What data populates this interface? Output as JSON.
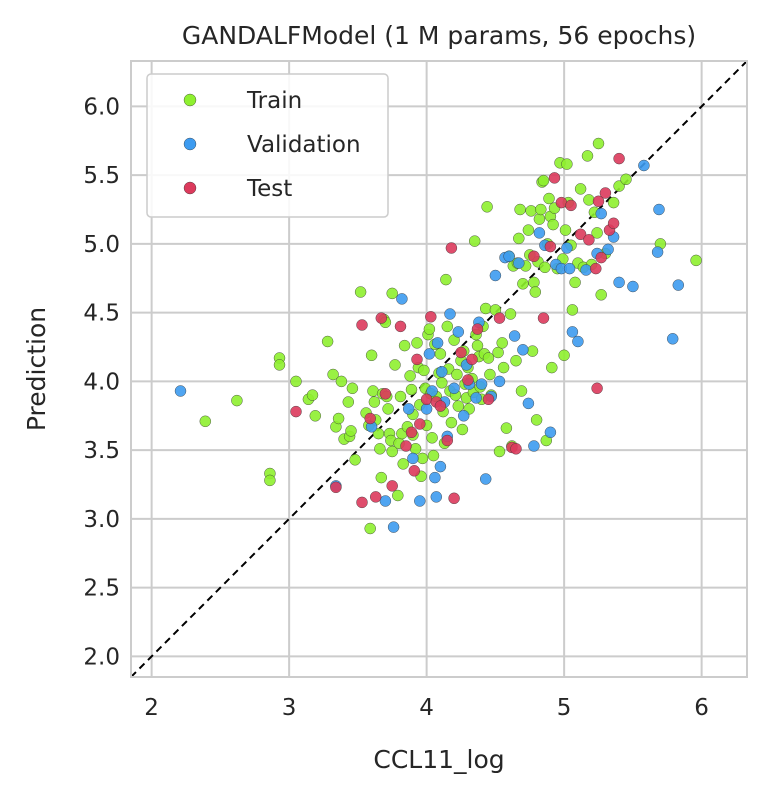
{
  "chart_data": {
    "type": "scatter",
    "title": "GANDALFModel (1 M params, 56 epochs)",
    "xlabel": "CCL11_log",
    "ylabel": "Prediction",
    "xlim": [
      1.85,
      6.33
    ],
    "ylim": [
      1.85,
      6.33
    ],
    "xticks": [
      "2",
      "3",
      "4",
      "5",
      "6"
    ],
    "yticks": [
      "2.0",
      "2.5",
      "3.0",
      "3.5",
      "4.0",
      "4.5",
      "5.0",
      "5.5",
      "6.0"
    ],
    "grid": true,
    "legend_position": "top-left",
    "reference_line": "y = x (dashed black)",
    "series": [
      {
        "name": "Train",
        "color": "#8ef02f",
        "points": [
          [
            2.39,
            3.71
          ],
          [
            2.62,
            3.86
          ],
          [
            2.86,
            3.33
          ],
          [
            2.86,
            3.28
          ],
          [
            2.93,
            4.17
          ],
          [
            2.93,
            4.12
          ],
          [
            3.05,
            4.0
          ],
          [
            3.14,
            3.87
          ],
          [
            3.17,
            3.9
          ],
          [
            3.19,
            3.75
          ],
          [
            3.28,
            4.29
          ],
          [
            3.32,
            4.05
          ],
          [
            3.34,
            3.67
          ],
          [
            3.36,
            3.73
          ],
          [
            3.38,
            4.0
          ],
          [
            3.4,
            3.58
          ],
          [
            3.43,
            3.85
          ],
          [
            3.44,
            3.6
          ],
          [
            3.45,
            3.64
          ],
          [
            3.46,
            3.95
          ],
          [
            3.48,
            3.43
          ],
          [
            3.52,
            4.65
          ],
          [
            3.56,
            3.77
          ],
          [
            3.58,
            3.68
          ],
          [
            3.59,
            2.93
          ],
          [
            3.6,
            4.19
          ],
          [
            3.61,
            3.93
          ],
          [
            3.62,
            3.85
          ],
          [
            3.63,
            3.72
          ],
          [
            3.65,
            3.62
          ],
          [
            3.66,
            3.51
          ],
          [
            3.67,
            3.3
          ],
          [
            3.68,
            3.91
          ],
          [
            3.69,
            4.45
          ],
          [
            3.7,
            4.43
          ],
          [
            3.71,
            3.89
          ],
          [
            3.72,
            3.8
          ],
          [
            3.73,
            3.62
          ],
          [
            3.74,
            3.57
          ],
          [
            3.75,
            3.49
          ],
          [
            3.75,
            4.64
          ],
          [
            3.77,
            4.12
          ],
          [
            3.79,
            3.17
          ],
          [
            3.8,
            3.55
          ],
          [
            3.81,
            3.89
          ],
          [
            3.82,
            3.62
          ],
          [
            3.83,
            3.4
          ],
          [
            3.84,
            4.26
          ],
          [
            3.86,
            3.67
          ],
          [
            3.88,
            4.04
          ],
          [
            3.89,
            3.94
          ],
          [
            3.9,
            3.76
          ],
          [
            3.9,
            3.61
          ],
          [
            3.92,
            3.51
          ],
          [
            3.93,
            4.28
          ],
          [
            3.94,
            4.1
          ],
          [
            3.95,
            3.83
          ],
          [
            3.96,
            3.31
          ],
          [
            3.97,
            3.44
          ],
          [
            3.98,
            4.08
          ],
          [
            3.99,
            3.95
          ],
          [
            4.0,
            3.68
          ],
          [
            4.01,
            4.34
          ],
          [
            4.02,
            4.38
          ],
          [
            4.03,
            3.91
          ],
          [
            4.04,
            3.59
          ],
          [
            4.05,
            3.46
          ],
          [
            4.06,
            4.27
          ],
          [
            4.07,
            3.89
          ],
          [
            4.09,
            4.06
          ],
          [
            4.1,
            4.2
          ],
          [
            4.11,
            3.99
          ],
          [
            4.12,
            3.78
          ],
          [
            4.13,
            3.55
          ],
          [
            4.14,
            4.74
          ],
          [
            4.15,
            4.4
          ],
          [
            4.16,
            4.09
          ],
          [
            4.17,
            3.93
          ],
          [
            4.18,
            3.7
          ],
          [
            4.2,
            4.3
          ],
          [
            4.21,
            3.9
          ],
          [
            4.22,
            4.05
          ],
          [
            4.23,
            3.82
          ],
          [
            4.25,
            4.15
          ],
          [
            4.26,
            3.65
          ],
          [
            4.27,
            4.22
          ],
          [
            4.28,
            3.98
          ],
          [
            4.29,
            3.88
          ],
          [
            4.3,
            4.1
          ],
          [
            4.31,
            3.8
          ],
          [
            4.33,
            4.02
          ],
          [
            4.34,
            3.92
          ],
          [
            4.35,
            5.02
          ],
          [
            4.36,
            4.34
          ],
          [
            4.37,
            4.26
          ],
          [
            4.38,
            4.18
          ],
          [
            4.39,
            3.96
          ],
          [
            4.4,
            3.87
          ],
          [
            4.41,
            4.4
          ],
          [
            4.42,
            4.2
          ],
          [
            4.43,
            4.53
          ],
          [
            4.44,
            5.27
          ],
          [
            4.45,
            4.17
          ],
          [
            4.46,
            4.05
          ],
          [
            4.47,
            3.9
          ],
          [
            4.5,
            4.52
          ],
          [
            4.52,
            4.21
          ],
          [
            4.53,
            3.49
          ],
          [
            4.55,
            4.28
          ],
          [
            4.56,
            4.1
          ],
          [
            4.58,
            3.66
          ],
          [
            4.6,
            4.91
          ],
          [
            4.61,
            4.49
          ],
          [
            4.62,
            3.53
          ],
          [
            4.63,
            4.84
          ],
          [
            4.65,
            4.15
          ],
          [
            4.66,
            4.86
          ],
          [
            4.67,
            5.04
          ],
          [
            4.68,
            5.25
          ],
          [
            4.69,
            3.93
          ],
          [
            4.7,
            4.71
          ],
          [
            4.72,
            4.84
          ],
          [
            4.74,
            5.1
          ],
          [
            4.75,
            4.92
          ],
          [
            4.76,
            5.24
          ],
          [
            4.77,
            4.22
          ],
          [
            4.78,
            4.72
          ],
          [
            4.79,
            4.65
          ],
          [
            4.8,
            3.72
          ],
          [
            4.81,
            4.87
          ],
          [
            4.82,
            5.18
          ],
          [
            4.83,
            5.25
          ],
          [
            4.84,
            5.45
          ],
          [
            4.85,
            5.46
          ],
          [
            4.86,
            4.83
          ],
          [
            4.87,
            3.57
          ],
          [
            4.88,
            5.0
          ],
          [
            4.89,
            5.33
          ],
          [
            4.9,
            5.2
          ],
          [
            4.91,
            4.1
          ],
          [
            4.92,
            5.14
          ],
          [
            4.93,
            5.26
          ],
          [
            4.95,
            4.82
          ],
          [
            4.97,
            5.59
          ],
          [
            4.99,
            4.89
          ],
          [
            5.0,
            4.19
          ],
          [
            5.01,
            5.1
          ],
          [
            5.02,
            5.58
          ],
          [
            5.03,
            5.3
          ],
          [
            5.05,
            4.99
          ],
          [
            5.06,
            4.52
          ],
          [
            5.08,
            4.72
          ],
          [
            5.1,
            4.86
          ],
          [
            5.12,
            5.4
          ],
          [
            5.14,
            4.83
          ],
          [
            5.17,
            5.64
          ],
          [
            5.18,
            5.32
          ],
          [
            5.2,
            4.85
          ],
          [
            5.22,
            5.23
          ],
          [
            5.24,
            5.08
          ],
          [
            5.25,
            5.73
          ],
          [
            5.27,
            4.63
          ],
          [
            5.3,
            4.93
          ],
          [
            5.36,
            5.3
          ],
          [
            5.4,
            5.42
          ],
          [
            5.45,
            5.47
          ],
          [
            5.96,
            4.88
          ],
          [
            5.7,
            5.0
          ]
        ]
      },
      {
        "name": "Validation",
        "color": "#3d9bf0",
        "points": [
          [
            2.21,
            3.93
          ],
          [
            3.34,
            3.24
          ],
          [
            3.6,
            3.67
          ],
          [
            3.7,
            3.13
          ],
          [
            3.76,
            2.94
          ],
          [
            3.82,
            4.6
          ],
          [
            3.87,
            3.8
          ],
          [
            3.9,
            3.44
          ],
          [
            3.95,
            3.13
          ],
          [
            4.0,
            3.8
          ],
          [
            4.02,
            4.2
          ],
          [
            4.04,
            3.93
          ],
          [
            4.06,
            3.3
          ],
          [
            4.07,
            3.16
          ],
          [
            4.08,
            4.28
          ],
          [
            4.1,
            3.38
          ],
          [
            4.11,
            4.07
          ],
          [
            4.13,
            3.85
          ],
          [
            4.15,
            3.6
          ],
          [
            4.17,
            4.49
          ],
          [
            4.2,
            3.95
          ],
          [
            4.23,
            4.36
          ],
          [
            4.27,
            3.75
          ],
          [
            4.29,
            4.12
          ],
          [
            4.31,
            3.98
          ],
          [
            4.36,
            3.88
          ],
          [
            4.38,
            4.43
          ],
          [
            4.4,
            3.98
          ],
          [
            4.43,
            3.29
          ],
          [
            4.47,
            3.89
          ],
          [
            4.5,
            4.77
          ],
          [
            4.53,
            4.0
          ],
          [
            4.57,
            4.9
          ],
          [
            4.6,
            4.91
          ],
          [
            4.64,
            4.33
          ],
          [
            4.67,
            4.86
          ],
          [
            4.7,
            4.23
          ],
          [
            4.74,
            3.84
          ],
          [
            4.78,
            3.53
          ],
          [
            4.82,
            5.08
          ],
          [
            4.86,
            4.99
          ],
          [
            4.9,
            3.63
          ],
          [
            4.94,
            4.85
          ],
          [
            4.98,
            4.82
          ],
          [
            5.02,
            4.97
          ],
          [
            5.04,
            4.82
          ],
          [
            5.06,
            4.36
          ],
          [
            5.1,
            4.29
          ],
          [
            5.16,
            4.81
          ],
          [
            5.24,
            4.93
          ],
          [
            5.27,
            5.22
          ],
          [
            5.32,
            4.96
          ],
          [
            5.36,
            5.05
          ],
          [
            5.4,
            4.72
          ],
          [
            5.5,
            4.69
          ],
          [
            5.58,
            5.57
          ],
          [
            5.68,
            4.94
          ],
          [
            5.69,
            5.25
          ],
          [
            5.79,
            4.31
          ],
          [
            5.83,
            4.7
          ]
        ]
      },
      {
        "name": "Test",
        "color": "#dc3a5c",
        "points": [
          [
            3.05,
            3.78
          ],
          [
            3.34,
            3.23
          ],
          [
            3.53,
            4.41
          ],
          [
            3.53,
            3.12
          ],
          [
            3.59,
            3.73
          ],
          [
            3.63,
            3.16
          ],
          [
            3.67,
            4.46
          ],
          [
            3.7,
            3.91
          ],
          [
            3.75,
            3.24
          ],
          [
            3.81,
            4.4
          ],
          [
            3.85,
            3.53
          ],
          [
            3.89,
            3.63
          ],
          [
            3.91,
            3.35
          ],
          [
            3.93,
            4.16
          ],
          [
            3.95,
            3.69
          ],
          [
            4.0,
            3.87
          ],
          [
            4.03,
            4.47
          ],
          [
            4.07,
            3.85
          ],
          [
            4.1,
            3.82
          ],
          [
            4.15,
            3.57
          ],
          [
            4.18,
            4.97
          ],
          [
            4.2,
            3.15
          ],
          [
            4.25,
            4.21
          ],
          [
            4.3,
            4.01
          ],
          [
            4.33,
            4.16
          ],
          [
            4.37,
            4.38
          ],
          [
            4.45,
            3.87
          ],
          [
            4.53,
            4.46
          ],
          [
            4.62,
            3.52
          ],
          [
            4.65,
            3.51
          ],
          [
            4.78,
            4.91
          ],
          [
            4.85,
            4.46
          ],
          [
            4.9,
            4.98
          ],
          [
            4.93,
            5.48
          ],
          [
            4.98,
            5.3
          ],
          [
            5.05,
            5.28
          ],
          [
            5.12,
            5.07
          ],
          [
            5.18,
            5.03
          ],
          [
            5.23,
            4.82
          ],
          [
            5.24,
            3.95
          ],
          [
            5.25,
            5.31
          ],
          [
            5.27,
            4.9
          ],
          [
            5.3,
            5.37
          ],
          [
            5.33,
            5.1
          ],
          [
            5.36,
            5.15
          ],
          [
            5.4,
            5.62
          ]
        ]
      }
    ]
  }
}
